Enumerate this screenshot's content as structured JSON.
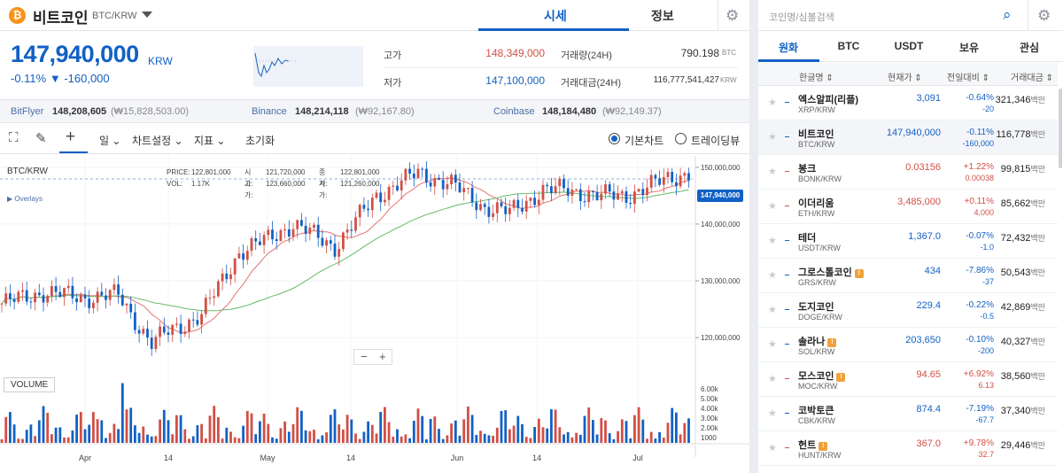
{
  "header": {
    "coin_logo": "₿",
    "coin_name": "비트코인",
    "coin_code": "BTC/KRW",
    "tab_price": "시세",
    "tab_info": "정보"
  },
  "summary": {
    "price": "147,940,000",
    "unit": "KRW",
    "change": "-0.11% ▼ -160,000",
    "high_label": "고가",
    "high_value": "148,349,000",
    "low_label": "저가",
    "low_value": "147,100,000",
    "vol_label": "거래량(24H)",
    "vol_value": "790.198",
    "vol_unit": "BTC",
    "amt_label": "거래대금(24H)",
    "amt_value": "116,777,541,427",
    "amt_unit": "KRW"
  },
  "exchanges": [
    {
      "name": "BitFlyer",
      "price": "148,208,605",
      "usd": "(₩15,828,503.00)"
    },
    {
      "name": "Binance",
      "price": "148,214,118",
      "usd": "(₩92,167.80)"
    },
    {
      "name": "Coinbase",
      "price": "148,184,480",
      "usd": "(₩92,149.37)"
    }
  ],
  "toolbar": {
    "interval": "일 ⌄",
    "chart_settings": "차트설정 ⌄",
    "indicators": "지표 ⌄",
    "reset": "초기화",
    "basic_chart": "기본차트",
    "tradingview": "트레이딩뷰"
  },
  "chart_overlay": {
    "pair": "BTC/KRW",
    "overlays": "▶ Overlays",
    "price_label": "PRICE:",
    "price_value": "122,801,000",
    "open_label": "시가:",
    "open_value": "121,720,000",
    "close_label": "종가:",
    "close_value": "122,801,000",
    "vol_label": "VOL:",
    "vol_value": "1.17K",
    "high_label": "고가:",
    "high_value": "123,660,000",
    "low_label": "저가:",
    "low_value": "121,260,000",
    "volume_tab": "VOLUME",
    "current_price_tag": "147,940,000",
    "zoom_minus": "−",
    "zoom_plus": "+"
  },
  "chart_data": {
    "type": "candlestick",
    "y_ticks": [
      "150,000,000",
      "140,000,000",
      "130,000,000",
      "120,000,000"
    ],
    "y_values": [
      150000000,
      140000000,
      130000000,
      120000000
    ],
    "vol_ticks": [
      "6.00k",
      "5.00k",
      "4.00k",
      "3.00k",
      "2.00k",
      "1000"
    ],
    "x_ticks": [
      "Apr",
      "14",
      "May",
      "14",
      "Jun",
      "14",
      "Jul"
    ],
    "ylim": [
      113000000,
      152000000
    ],
    "series": [
      {
        "name": "VOLUME"
      }
    ]
  },
  "search": {
    "placeholder": "코인명/심볼검색"
  },
  "market_tabs": [
    "원화",
    "BTC",
    "USDT",
    "보유",
    "관심"
  ],
  "columns": {
    "name": "한글명 ⇕",
    "price": "현재가 ⇕",
    "change": "전일대비 ⇕",
    "volume": "거래대금 ⇕"
  },
  "coins": [
    {
      "name": "엑스알피(리플)",
      "pair": "XRP/KRW",
      "price": "3,091",
      "pct": "-0.64%",
      "abs": "-20",
      "vol": "321,346",
      "unit": "백만",
      "dir": "down",
      "warn": false
    },
    {
      "name": "비트코인",
      "pair": "BTC/KRW",
      "price": "147,940,000",
      "pct": "-0.11%",
      "abs": "-160,000",
      "vol": "116,778",
      "unit": "백만",
      "dir": "down",
      "warn": false
    },
    {
      "name": "봉크",
      "pair": "BONK/KRW",
      "price": "0.03156",
      "pct": "+1.22%",
      "abs": "0.00038",
      "vol": "99,815",
      "unit": "백만",
      "dir": "up",
      "warn": false
    },
    {
      "name": "이더리움",
      "pair": "ETH/KRW",
      "price": "3,485,000",
      "pct": "+0.11%",
      "abs": "4,000",
      "vol": "85,662",
      "unit": "백만",
      "dir": "up",
      "warn": false
    },
    {
      "name": "테더",
      "pair": "USDT/KRW",
      "price": "1,367.0",
      "pct": "-0.07%",
      "abs": "-1.0",
      "vol": "72,432",
      "unit": "백만",
      "dir": "down",
      "warn": false
    },
    {
      "name": "그로스톨코인",
      "pair": "GRS/KRW",
      "price": "434",
      "pct": "-7.86%",
      "abs": "-37",
      "vol": "50,543",
      "unit": "백만",
      "dir": "down",
      "warn": true
    },
    {
      "name": "도지코인",
      "pair": "DOGE/KRW",
      "price": "229.4",
      "pct": "-0.22%",
      "abs": "-0.5",
      "vol": "42,869",
      "unit": "백만",
      "dir": "down",
      "warn": false
    },
    {
      "name": "솔라나",
      "pair": "SOL/KRW",
      "price": "203,650",
      "pct": "-0.10%",
      "abs": "-200",
      "vol": "40,327",
      "unit": "백만",
      "dir": "down",
      "warn": true
    },
    {
      "name": "모스코인",
      "pair": "MOC/KRW",
      "price": "94.65",
      "pct": "+6.92%",
      "abs": "6.13",
      "vol": "38,560",
      "unit": "백만",
      "dir": "up",
      "warn": true
    },
    {
      "name": "코박토큰",
      "pair": "CBK/KRW",
      "price": "874.4",
      "pct": "-7.19%",
      "abs": "-67.7",
      "vol": "37,340",
      "unit": "백만",
      "dir": "down",
      "warn": false
    },
    {
      "name": "헌트",
      "pair": "HUNT/KRW",
      "price": "367.0",
      "pct": "+9.78%",
      "abs": "32.7",
      "vol": "29,446",
      "unit": "백만",
      "dir": "up",
      "warn": true
    }
  ],
  "colors": {
    "up": "#d24f45",
    "down": "#1261c4",
    "accent": "#1261c4"
  }
}
